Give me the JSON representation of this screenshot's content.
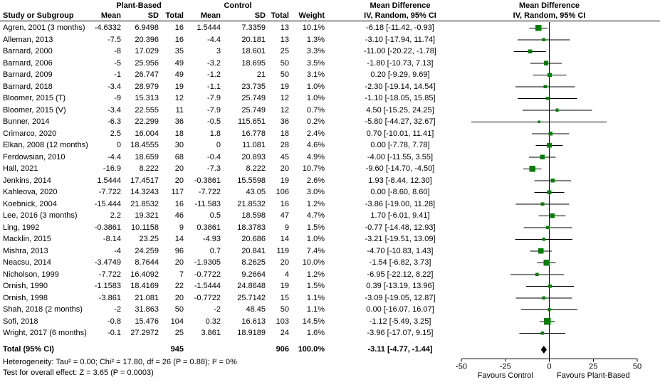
{
  "header": {
    "group1": "Plant-Based",
    "group2": "Control",
    "md_label": "Mean Difference",
    "study_col": "Study or Subgroup",
    "mean_col": "Mean",
    "sd_col": "SD",
    "total_col": "Total",
    "weight_col": "Weight",
    "ci_col": "IV, Random, 95% CI"
  },
  "footer": {
    "heterogeneity": "Heterogeneity: Tau² = 0.00; Chi² = 17.80, df = 26 (P = 0.88); I² = 0%",
    "overall_effect": "Test for overall effect: Z = 3.65 (P = 0.0003)"
  },
  "colors": {
    "square": "#007f00",
    "diamond": "#000000",
    "line": "#000000",
    "axis": "#000000"
  },
  "chart_data": {
    "type": "scatter",
    "subtype": "forest-plot",
    "title": "Mean Difference, IV, Random, 95% CI",
    "xlim": [
      -50,
      50
    ],
    "x_ticks": [
      -50,
      -25,
      0,
      25,
      50
    ],
    "favours_left": "Favours Control",
    "favours_right": "Favours Plant-Based",
    "studies": [
      {
        "study": "Agren, 2001 (3 months)",
        "pb_mean": "-4.6332",
        "pb_sd": "6.9498",
        "pb_total": "16",
        "c_mean": "1.5444",
        "c_sd": "7.3359",
        "c_total": "13",
        "weight": "10.1%",
        "ci_text": "-6.18 [-11.42, -0.93]",
        "md": -6.18,
        "lo": -11.42,
        "hi": -0.93,
        "w": 10.1
      },
      {
        "study": "Alleman, 2013",
        "pb_mean": "-7.5",
        "pb_sd": "20.396",
        "pb_total": "16",
        "c_mean": "-4.4",
        "c_sd": "20.181",
        "c_total": "13",
        "weight": "1.3%",
        "ci_text": "-3.10 [-17.94, 11.74]",
        "md": -3.1,
        "lo": -17.94,
        "hi": 11.74,
        "w": 1.3
      },
      {
        "study": "Barnard, 2000",
        "pb_mean": "-8",
        "pb_sd": "17.029",
        "pb_total": "35",
        "c_mean": "3",
        "c_sd": "18.601",
        "c_total": "25",
        "weight": "3.3%",
        "ci_text": "-11.00 [-20.22, -1.78]",
        "md": -11.0,
        "lo": -20.22,
        "hi": -1.78,
        "w": 3.3
      },
      {
        "study": "Barnard, 2006",
        "pb_mean": "-5",
        "pb_sd": "25.956",
        "pb_total": "49",
        "c_mean": "-3.2",
        "c_sd": "18.695",
        "c_total": "50",
        "weight": "3.5%",
        "ci_text": "-1.80 [-10.73, 7.13]",
        "md": -1.8,
        "lo": -10.73,
        "hi": 7.13,
        "w": 3.5
      },
      {
        "study": "Barnard, 2009",
        "pb_mean": "-1",
        "pb_sd": "26.747",
        "pb_total": "49",
        "c_mean": "-1.2",
        "c_sd": "21",
        "c_total": "50",
        "weight": "3.1%",
        "ci_text": "0.20 [-9.29, 9.69]",
        "md": 0.2,
        "lo": -9.29,
        "hi": 9.69,
        "w": 3.1
      },
      {
        "study": "Barnard, 2018",
        "pb_mean": "-3.4",
        "pb_sd": "28.979",
        "pb_total": "19",
        "c_mean": "-1.1",
        "c_sd": "23.735",
        "c_total": "19",
        "weight": "1.0%",
        "ci_text": "-2.30 [-19.14, 14.54]",
        "md": -2.3,
        "lo": -19.14,
        "hi": 14.54,
        "w": 1.0
      },
      {
        "study": "Bloomer, 2015 (T)",
        "pb_mean": "-9",
        "pb_sd": "15.313",
        "pb_total": "12",
        "c_mean": "-7.9",
        "c_sd": "25.749",
        "c_total": "12",
        "weight": "1.0%",
        "ci_text": "-1.10 [-18.05, 15.85]",
        "md": -1.1,
        "lo": -18.05,
        "hi": 15.85,
        "w": 1.0
      },
      {
        "study": "Bloomer, 2015 (V)",
        "pb_mean": "-3.4",
        "pb_sd": "22.555",
        "pb_total": "11",
        "c_mean": "-7.9",
        "c_sd": "25.749",
        "c_total": "12",
        "weight": "0.7%",
        "ci_text": "4.50 [-15.25, 24.25]",
        "md": 4.5,
        "lo": -15.25,
        "hi": 24.25,
        "w": 0.7
      },
      {
        "study": "Bunner, 2014",
        "pb_mean": "-6.3",
        "pb_sd": "22.299",
        "pb_total": "36",
        "c_mean": "-0.5",
        "c_sd": "115.651",
        "c_total": "36",
        "weight": "0.2%",
        "ci_text": "-5.80 [-44.27, 32.67]",
        "md": -5.8,
        "lo": -44.27,
        "hi": 32.67,
        "w": 0.2
      },
      {
        "study": "Crimarco, 2020",
        "pb_mean": "2.5",
        "pb_sd": "16.004",
        "pb_total": "18",
        "c_mean": "1.8",
        "c_sd": "16.778",
        "c_total": "18",
        "weight": "2.4%",
        "ci_text": "0.70 [-10.01, 11.41]",
        "md": 0.7,
        "lo": -10.01,
        "hi": 11.41,
        "w": 2.4
      },
      {
        "study": "Elkan, 2008 (12 months)",
        "pb_mean": "0",
        "pb_sd": "18.4555",
        "pb_total": "30",
        "c_mean": "0",
        "c_sd": "11.081",
        "c_total": "28",
        "weight": "4.6%",
        "ci_text": "0.00 [-7.78, 7.78]",
        "md": 0.0,
        "lo": -7.78,
        "hi": 7.78,
        "w": 4.6
      },
      {
        "study": "Ferdowsian, 2010",
        "pb_mean": "-4.4",
        "pb_sd": "18.659",
        "pb_total": "68",
        "c_mean": "-0.4",
        "c_sd": "20.893",
        "c_total": "45",
        "weight": "4.9%",
        "ci_text": "-4.00 [-11.55, 3.55]",
        "md": -4.0,
        "lo": -11.55,
        "hi": 3.55,
        "w": 4.9
      },
      {
        "study": "Hall, 2021",
        "pb_mean": "-16.9",
        "pb_sd": "8.222",
        "pb_total": "20",
        "c_mean": "-7.3",
        "c_sd": "8.222",
        "c_total": "20",
        "weight": "10.7%",
        "ci_text": "-9.60 [-14.70, -4.50]",
        "md": -9.6,
        "lo": -14.7,
        "hi": -4.5,
        "w": 10.7
      },
      {
        "study": "Jenkins, 2014",
        "pb_mean": "1.5444",
        "pb_sd": "17.4517",
        "pb_total": "20",
        "c_mean": "-0.3861",
        "c_sd": "15.5598",
        "c_total": "19",
        "weight": "2.6%",
        "ci_text": "1.93 [-8.44, 12.30]",
        "md": 1.93,
        "lo": -8.44,
        "hi": 12.3,
        "w": 2.6
      },
      {
        "study": "Kahleova, 2020",
        "pb_mean": "-7.722",
        "pb_sd": "14.3243",
        "pb_total": "117",
        "c_mean": "-7.722",
        "c_sd": "43.05",
        "c_total": "106",
        "weight": "3.0%",
        "ci_text": "0.00 [-8.60, 8.60]",
        "md": 0.0,
        "lo": -8.6,
        "hi": 8.6,
        "w": 3.0
      },
      {
        "study": "Koebnick, 2004",
        "pb_mean": "-15.444",
        "pb_sd": "21.8532",
        "pb_total": "16",
        "c_mean": "-11.583",
        "c_sd": "21.8532",
        "c_total": "16",
        "weight": "1.2%",
        "ci_text": "-3.86 [-19.00, 11.28]",
        "md": -3.86,
        "lo": -19.0,
        "hi": 11.28,
        "w": 1.2
      },
      {
        "study": "Lee, 2016 (3 months)",
        "pb_mean": "2.2",
        "pb_sd": "19.321",
        "pb_total": "46",
        "c_mean": "0.5",
        "c_sd": "18.598",
        "c_total": "47",
        "weight": "4.7%",
        "ci_text": "1.70 [-6.01, 9.41]",
        "md": 1.7,
        "lo": -6.01,
        "hi": 9.41,
        "w": 4.7
      },
      {
        "study": "Ling, 1992",
        "pb_mean": "-0.3861",
        "pb_sd": "10.1158",
        "pb_total": "9",
        "c_mean": "0.3861",
        "c_sd": "18.3783",
        "c_total": "9",
        "weight": "1.5%",
        "ci_text": "-0.77 [-14.48, 12.93]",
        "md": -0.77,
        "lo": -14.48,
        "hi": 12.93,
        "w": 1.5
      },
      {
        "study": "Macklin, 2015",
        "pb_mean": "-8.14",
        "pb_sd": "23.25",
        "pb_total": "14",
        "c_mean": "-4.93",
        "c_sd": "20.686",
        "c_total": "14",
        "weight": "1.0%",
        "ci_text": "-3.21 [-19.51, 13.09]",
        "md": -3.21,
        "lo": -19.51,
        "hi": 13.09,
        "w": 1.0
      },
      {
        "study": "Mishra, 2013",
        "pb_mean": "-4",
        "pb_sd": "24.259",
        "pb_total": "96",
        "c_mean": "0.7",
        "c_sd": "20.841",
        "c_total": "119",
        "weight": "7.4%",
        "ci_text": "-4.70 [-10.83, 1.43]",
        "md": -4.7,
        "lo": -10.83,
        "hi": 1.43,
        "w": 7.4
      },
      {
        "study": "Neacsu, 2014",
        "pb_mean": "-3.4749",
        "pb_sd": "8.7644",
        "pb_total": "20",
        "c_mean": "-1.9305",
        "c_sd": "8.2625",
        "c_total": "20",
        "weight": "10.0%",
        "ci_text": "-1.54 [-6.82, 3.73]",
        "md": -1.54,
        "lo": -6.82,
        "hi": 3.73,
        "w": 10.0
      },
      {
        "study": "Nicholson, 1999",
        "pb_mean": "-7.722",
        "pb_sd": "16.4092",
        "pb_total": "7",
        "c_mean": "-0.7722",
        "c_sd": "9.2664",
        "c_total": "4",
        "weight": "1.2%",
        "ci_text": "-6.95 [-22.12, 8.22]",
        "md": -6.95,
        "lo": -22.12,
        "hi": 8.22,
        "w": 1.2
      },
      {
        "study": "Ornish, 1990",
        "pb_mean": "-1.1583",
        "pb_sd": "18.4169",
        "pb_total": "22",
        "c_mean": "-1.5444",
        "c_sd": "24.8648",
        "c_total": "19",
        "weight": "1.5%",
        "ci_text": "0.39 [-13.19, 13.96]",
        "md": 0.39,
        "lo": -13.19,
        "hi": 13.96,
        "w": 1.5
      },
      {
        "study": "Ornish, 1998",
        "pb_mean": "-3.861",
        "pb_sd": "21.081",
        "pb_total": "20",
        "c_mean": "-0.7722",
        "c_sd": "25.7142",
        "c_total": "15",
        "weight": "1.1%",
        "ci_text": "-3.09 [-19.05, 12.87]",
        "md": -3.09,
        "lo": -19.05,
        "hi": 12.87,
        "w": 1.1
      },
      {
        "study": "Shah, 2018 (2 months)",
        "pb_mean": "-2",
        "pb_sd": "31.863",
        "pb_total": "50",
        "c_mean": "-2",
        "c_sd": "48.45",
        "c_total": "50",
        "weight": "1.1%",
        "ci_text": "0.00 [-16.07, 16.07]",
        "md": 0.0,
        "lo": -16.07,
        "hi": 16.07,
        "w": 1.1
      },
      {
        "study": "Sofi, 2018",
        "pb_mean": "-0.8",
        "pb_sd": "15.476",
        "pb_total": "104",
        "c_mean": "0.32",
        "c_sd": "16.613",
        "c_total": "103",
        "weight": "14.5%",
        "ci_text": "-1.12 [-5.49, 3.25]",
        "md": -1.12,
        "lo": -5.49,
        "hi": 3.25,
        "w": 14.5
      },
      {
        "study": "Wright, 2017 (6 months)",
        "pb_mean": "-0.1",
        "pb_sd": "27.2972",
        "pb_total": "25",
        "c_mean": "3.861",
        "c_sd": "18.9189",
        "c_total": "24",
        "weight": "1.6%",
        "ci_text": "-3.96 [-17.07, 9.15]",
        "md": -3.96,
        "lo": -17.07,
        "hi": 9.15,
        "w": 1.6
      }
    ],
    "total": {
      "label": "Total (95% CI)",
      "pb_total": "945",
      "c_total": "906",
      "weight": "100.0%",
      "ci_text": "-3.11 [-4.77, -1.44]",
      "md": -3.11,
      "lo": -4.77,
      "hi": -1.44
    }
  }
}
